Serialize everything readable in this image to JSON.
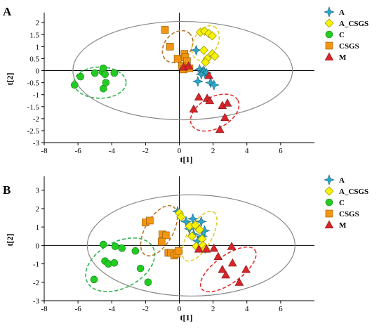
{
  "legend_symbols": {
    "A": "star",
    "A_CSGS": "diamond",
    "C": "circle",
    "CSGS": "square",
    "M": "triangle"
  },
  "colors": {
    "A": "#2aa7c8",
    "A_CSGS": "#f7f200",
    "C": "#22cc22",
    "CSGS": "#f29611",
    "M": "#d8252a",
    "ellipse_main": "#888888",
    "ellipse_A_CSGS": "#e0cc2a",
    "ellipse_C": "#2fb24a",
    "ellipse_CSGS": "#b5762b",
    "ellipse_M": "#e23030"
  },
  "chart_data": [
    {
      "type": "scatter",
      "panel_label": "A",
      "xlabel": "t[1]",
      "ylabel": "t[2]",
      "xlim": [
        -8,
        8
      ],
      "ylim": [
        -3,
        2.3
      ],
      "xticks": [
        -8,
        -6,
        -4,
        -2,
        0,
        2,
        4,
        6
      ],
      "yticks": [
        -3,
        -2.5,
        -2,
        -1.5,
        -1,
        -0.5,
        0,
        0.5,
        1,
        1.5,
        2
      ],
      "grid": false,
      "legend_position": "top-right",
      "legend_entries": [
        "A",
        "A_CSGS",
        "C",
        "CSGS",
        "M"
      ],
      "ellipses": [
        {
          "group": "main",
          "cx": 0.2,
          "cy": 0,
          "rx": 6.5,
          "ry": 2.05,
          "angle": 0,
          "dashed": false
        },
        {
          "group": "C",
          "cx": -4.7,
          "cy": -0.5,
          "rx": 1.55,
          "ry": 0.65,
          "angle": 0,
          "dashed": true
        },
        {
          "group": "CSGS",
          "cx": -0.1,
          "cy": 1.0,
          "rx": 1.05,
          "ry": 0.55,
          "angle": -50,
          "dashed": true
        },
        {
          "group": "A_CSGS",
          "cx": 1.55,
          "cy": 1.15,
          "rx": 1.1,
          "ry": 0.5,
          "angle": -62,
          "dashed": true
        },
        {
          "group": "M",
          "cx": 2.1,
          "cy": -1.75,
          "rx": 1.55,
          "ry": 0.65,
          "angle": -28,
          "dashed": true
        }
      ],
      "series": [
        {
          "name": "A",
          "x": [
            1.0,
            1.2,
            1.35,
            1.45,
            1.5,
            1.6,
            1.85,
            2.05,
            1.1,
            1.3
          ],
          "y": [
            0.85,
            0.05,
            -0.05,
            0.0,
            -0.1,
            -0.1,
            -0.5,
            -0.6,
            -0.45,
            -0.15
          ]
        },
        {
          "name": "A_CSGS",
          "x": [
            1.25,
            1.5,
            1.75,
            1.95,
            1.45,
            1.65,
            1.95,
            2.1,
            1.55
          ],
          "y": [
            1.6,
            1.65,
            1.55,
            1.45,
            0.85,
            0.5,
            0.7,
            0.6,
            0.35
          ]
        },
        {
          "name": "C",
          "x": [
            -6.2,
            -5.85,
            -5.0,
            -4.55,
            -4.5,
            -4.5,
            -4.4,
            -3.85,
            -4.35
          ],
          "y": [
            -0.6,
            -0.25,
            -0.1,
            -0.05,
            0.1,
            -0.75,
            -0.15,
            -0.1,
            -0.5
          ]
        },
        {
          "name": "CSGS",
          "x": [
            -0.85,
            -0.55,
            -0.1,
            0.3,
            0.35,
            0.3,
            0.45,
            0.15,
            0.25,
            0.6
          ],
          "y": [
            1.7,
            1.0,
            0.5,
            0.7,
            0.55,
            0.2,
            0.4,
            0.2,
            0.05,
            0.1
          ]
        },
        {
          "name": "M",
          "x": [
            0.25,
            0.55,
            1.75,
            1.15,
            1.65,
            2.55,
            2.85,
            2.4,
            1.8,
            0.85,
            2.7
          ],
          "y": [
            0.15,
            0.2,
            -0.2,
            -1.1,
            -1.15,
            -1.45,
            -1.35,
            -2.45,
            -1.25,
            -1.6,
            -1.95
          ]
        }
      ]
    },
    {
      "type": "scatter",
      "panel_label": "B",
      "xlabel": "t[1]",
      "ylabel": "t[2]",
      "xlim": [
        -8,
        8
      ],
      "ylim": [
        -3,
        3.6
      ],
      "xticks": [
        -8,
        -6,
        -4,
        -2,
        0,
        2,
        4,
        6
      ],
      "yticks": [
        -3,
        -2,
        -1,
        0,
        1,
        2,
        3
      ],
      "grid": false,
      "legend_position": "top-right",
      "legend_entries": [
        "A",
        "A_CSGS",
        "C",
        "CSGS",
        "M"
      ],
      "ellipses": [
        {
          "group": "main",
          "cx": 0.7,
          "cy": 0.0,
          "rx": 6.15,
          "ry": 2.75,
          "angle": 0,
          "dashed": false
        },
        {
          "group": "C",
          "cx": -3.5,
          "cy": -1.05,
          "rx": 2.2,
          "ry": 1.25,
          "angle": -28,
          "dashed": true
        },
        {
          "group": "CSGS",
          "cx": -1.2,
          "cy": 0.8,
          "rx": 1.65,
          "ry": 0.75,
          "angle": -60,
          "dashed": true
        },
        {
          "group": "A_CSGS",
          "cx": 1.2,
          "cy": 0.5,
          "rx": 1.65,
          "ry": 0.65,
          "angle": -60,
          "dashed": true
        },
        {
          "group": "M",
          "cx": 2.9,
          "cy": -1.3,
          "rx": 1.95,
          "ry": 0.75,
          "angle": -36,
          "dashed": true
        }
      ],
      "series": [
        {
          "name": "A",
          "x": [
            -0.1,
            0.4,
            0.8,
            0.95,
            1.3,
            1.5,
            1.35,
            0.6,
            0.85,
            1.1
          ],
          "y": [
            1.85,
            1.3,
            1.45,
            1.1,
            1.3,
            0.8,
            0.5,
            0.9,
            0.6,
            0.25
          ]
        },
        {
          "name": "A_CSGS",
          "x": [
            0.0,
            0.1,
            0.6,
            0.75,
            0.95,
            1.2,
            1.0,
            1.35,
            1.4,
            1.55
          ],
          "y": [
            1.75,
            1.55,
            1.05,
            0.5,
            1.1,
            0.85,
            -0.05,
            0.35,
            0.0,
            -0.2
          ]
        },
        {
          "name": "C",
          "x": [
            -4.5,
            -3.8,
            -3.4,
            -4.4,
            -4.2,
            -3.85,
            -2.3,
            -1.85,
            -2.6,
            -5.05
          ],
          "y": [
            0.05,
            -0.05,
            -0.15,
            -0.85,
            -1.0,
            -0.95,
            -1.25,
            -2.0,
            -0.3,
            -1.85
          ]
        },
        {
          "name": "CSGS",
          "x": [
            -2.0,
            -1.75,
            -1.0,
            -0.8,
            -1.05,
            -0.65,
            -0.5,
            -0.3,
            -0.15,
            -0.05
          ],
          "y": [
            1.25,
            1.35,
            0.6,
            0.55,
            0.2,
            -0.4,
            -0.4,
            -0.55,
            -0.45,
            -0.3
          ]
        },
        {
          "name": "M",
          "x": [
            1.15,
            1.6,
            2.05,
            2.3,
            2.55,
            3.15,
            2.75,
            3.55,
            3.95,
            3.1
          ],
          "y": [
            -0.2,
            -0.2,
            -0.15,
            -0.6,
            -1.3,
            -0.95,
            -1.6,
            -2.0,
            -1.3,
            -0.05
          ]
        }
      ]
    }
  ]
}
